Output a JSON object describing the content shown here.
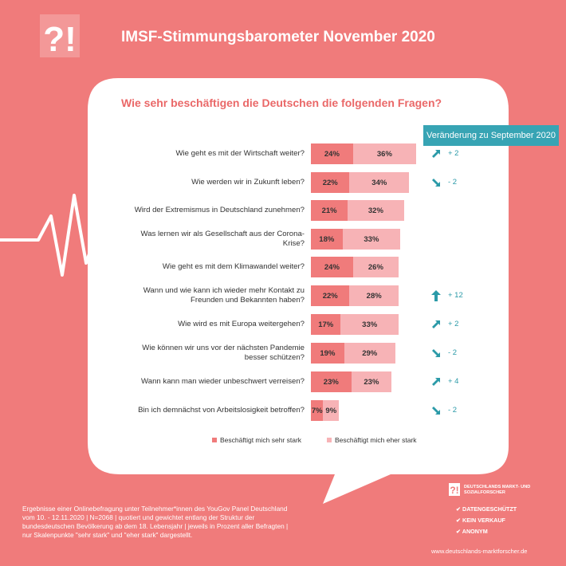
{
  "header": {
    "title": "IMSF-Stimmungsbarometer November 2020"
  },
  "chart_data": {
    "type": "bar",
    "title": "Wie sehr beschäftigen die Deutschen die folgenden Fragen?",
    "change_header": "Veränderung zu September 2020",
    "series": [
      {
        "name": "Beschäftigt mich sehr stark",
        "color": "#f07b7b"
      },
      {
        "name": "Beschäftigt mich eher stark",
        "color": "#f7b3b6"
      }
    ],
    "unit": "%",
    "rows": [
      {
        "question": "Wie geht es mit der Wirtschaft weiter?",
        "very": 24,
        "rather": 36,
        "change": "+ 2",
        "trend": "up"
      },
      {
        "question": "Wie werden wir in Zukunft leben?",
        "very": 22,
        "rather": 34,
        "change": "- 2",
        "trend": "down"
      },
      {
        "question": "Wird der Extremismus in Deutschland zunehmen?",
        "very": 21,
        "rather": 32,
        "change": "",
        "trend": ""
      },
      {
        "question": "Was lernen wir als Gesellschaft aus der Corona-Krise?",
        "very": 18,
        "rather": 33,
        "change": "",
        "trend": ""
      },
      {
        "question": "Wie geht es mit dem Klimawandel weiter?",
        "very": 24,
        "rather": 26,
        "change": "",
        "trend": ""
      },
      {
        "question": "Wann und wie kann ich wieder mehr Kontakt zu Freunden und Bekannten haben?",
        "very": 22,
        "rather": 28,
        "change": "+ 12",
        "trend": "strong-up"
      },
      {
        "question": "Wie wird es mit Europa weitergehen?",
        "very": 17,
        "rather": 33,
        "change": "+ 2",
        "trend": "up"
      },
      {
        "question": "Wie können wir uns vor der nächsten Pandemie besser schützen?",
        "very": 19,
        "rather": 29,
        "change": "- 2",
        "trend": "down"
      },
      {
        "question": "Wann kann man wieder unbeschwert verreisen?",
        "very": 23,
        "rather": 23,
        "change": "+ 4",
        "trend": "up"
      },
      {
        "question": "Bin ich demnächst von Arbeitslosigkeit betroffen?",
        "very": 7,
        "rather": 9,
        "change": "- 2",
        "trend": "down"
      }
    ]
  },
  "footnote": "Ergebnisse einer Onlinebefragung unter Teilnehmer*innen des YouGov Panel Deutschland vom 10. - 12.11.2020 | N=2068 | quotiert und gewichtet entlang der Struktur der bundesdeutschen Bevölkerung ab dem 18. Lebensjahr | jeweils in Prozent aller Befragten | nur Skalenpunkte \"sehr stark\" und \"eher stark\" dargestellt.",
  "brand": {
    "logo_text": "?!",
    "name": "DEUTSCHLANDS MARKT- UND SOZIALFORSCHER",
    "badges": [
      "DATENGESCHÜTZT",
      "KEIN VERKAUF",
      "ANONYM"
    ],
    "website": "www.deutschlands-marktforscher.de"
  },
  "colors": {
    "background": "#f07b7b",
    "accent": "#37a4b4",
    "title": "#ea6868"
  }
}
